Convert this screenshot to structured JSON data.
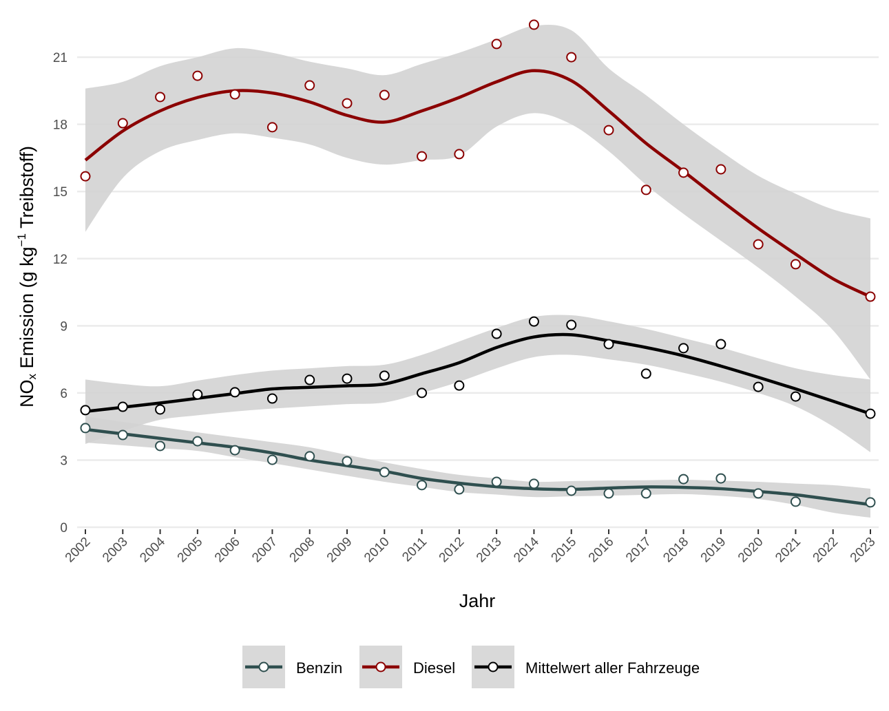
{
  "chart_data": {
    "type": "line",
    "title": "",
    "xlabel": "Jahr",
    "ylabel": {
      "main": "NO",
      "sub": "x",
      "mid": " Emission (g kg",
      "sup": "−1",
      "end": " Treibstoff)"
    },
    "x": [
      2002,
      2003,
      2004,
      2005,
      2006,
      2007,
      2008,
      2009,
      2010,
      2011,
      2012,
      2013,
      2014,
      2015,
      2016,
      2017,
      2018,
      2019,
      2020,
      2021,
      2022,
      2023
    ],
    "ylim": [
      0,
      22.6
    ],
    "yticks": [
      0,
      3,
      6,
      9,
      12,
      15,
      18,
      21
    ],
    "grid": true,
    "legend_position": "bottom",
    "smoothing_band_color": "#d3d3d3",
    "series": [
      {
        "name": "Benzin",
        "color": "#2F4F4F",
        "points": [
          4.43,
          4.12,
          3.63,
          3.84,
          3.44,
          3.01,
          3.17,
          2.95,
          2.46,
          1.88,
          1.69,
          2.03,
          1.94,
          1.63,
          1.51,
          1.51,
          2.15,
          2.18,
          1.51,
          1.14,
          null,
          1.11
        ],
        "smooth": [
          4.37,
          4.17,
          3.97,
          3.77,
          3.57,
          3.32,
          3.0,
          2.75,
          2.5,
          2.18,
          1.97,
          1.81,
          1.72,
          1.69,
          1.75,
          1.8,
          1.78,
          1.72,
          1.6,
          1.45,
          1.23,
          1.01
        ],
        "upper": [
          4.95,
          4.71,
          4.48,
          4.24,
          4.02,
          3.8,
          3.57,
          3.23,
          2.9,
          2.6,
          2.34,
          2.18,
          2.03,
          2.06,
          2.09,
          2.1,
          2.12,
          2.08,
          2.03,
          1.95,
          1.88,
          1.72
        ],
        "lower": [
          3.78,
          3.66,
          3.53,
          3.41,
          3.13,
          2.86,
          2.58,
          2.3,
          2.03,
          1.8,
          1.57,
          1.46,
          1.35,
          1.38,
          1.41,
          1.45,
          1.48,
          1.4,
          1.26,
          1.0,
          0.65,
          0.43
        ]
      },
      {
        "name": "Diesel",
        "color": "#8B0000",
        "points": [
          15.68,
          18.05,
          19.22,
          20.17,
          19.34,
          17.87,
          19.74,
          18.94,
          19.31,
          16.57,
          16.67,
          21.59,
          22.45,
          21.0,
          17.74,
          15.07,
          15.84,
          15.99,
          12.64,
          11.75,
          null,
          10.3
        ],
        "smooth": [
          16.4,
          17.7,
          18.6,
          19.2,
          19.5,
          19.4,
          19.0,
          18.4,
          18.1,
          18.6,
          19.2,
          19.9,
          20.4,
          19.95,
          18.6,
          17.15,
          15.9,
          14.6,
          13.35,
          12.2,
          11.1,
          10.3
        ],
        "upper": [
          19.6,
          19.9,
          20.6,
          21.0,
          21.4,
          21.2,
          20.8,
          20.5,
          20.2,
          20.7,
          21.2,
          21.8,
          22.4,
          22.2,
          20.5,
          19.3,
          18.0,
          16.8,
          15.7,
          14.9,
          14.2,
          13.8
        ],
        "lower": [
          13.2,
          15.6,
          16.8,
          17.3,
          17.6,
          17.4,
          17.1,
          16.5,
          16.2,
          16.4,
          16.6,
          17.9,
          18.5,
          18.0,
          16.8,
          15.3,
          14.0,
          12.8,
          11.6,
          10.3,
          8.8,
          6.6
        ]
      },
      {
        "name": "Mittelwert aller Fahrzeuge",
        "color": "#000000",
        "points": [
          5.23,
          5.38,
          5.26,
          5.93,
          6.03,
          5.75,
          6.58,
          6.64,
          6.77,
          6.0,
          6.33,
          8.64,
          9.19,
          9.04,
          8.18,
          6.86,
          8.0,
          8.18,
          6.27,
          5.84,
          null,
          5.07
        ],
        "smooth": [
          5.17,
          5.36,
          5.55,
          5.76,
          5.97,
          6.18,
          6.25,
          6.32,
          6.4,
          6.86,
          7.35,
          8.03,
          8.5,
          8.6,
          8.33,
          8.03,
          7.66,
          7.2,
          6.7,
          6.18,
          5.63,
          5.07
        ],
        "upper": [
          6.6,
          6.4,
          6.3,
          6.55,
          6.8,
          7.0,
          7.1,
          7.2,
          7.26,
          7.7,
          8.3,
          8.9,
          9.4,
          9.47,
          9.2,
          8.86,
          8.45,
          8.03,
          7.55,
          7.1,
          6.8,
          6.6
        ],
        "lower": [
          3.72,
          4.3,
          4.8,
          5.0,
          5.17,
          5.3,
          5.4,
          5.5,
          5.57,
          6.0,
          6.5,
          7.1,
          7.6,
          7.7,
          7.5,
          7.26,
          6.9,
          6.5,
          6.0,
          5.4,
          4.5,
          3.35
        ]
      }
    ]
  }
}
